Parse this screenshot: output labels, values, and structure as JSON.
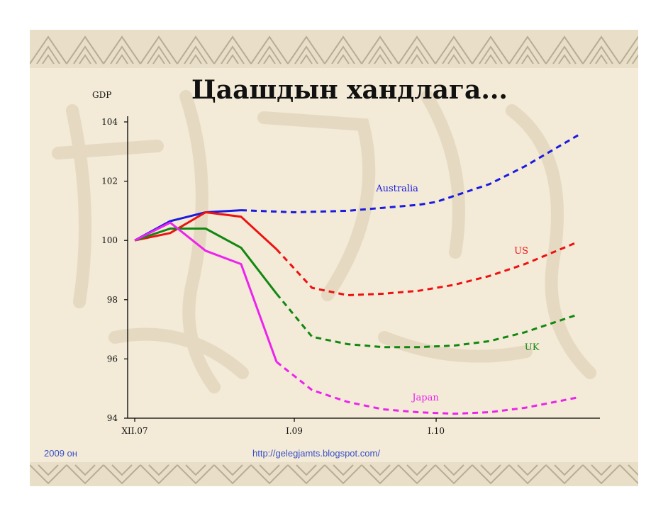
{
  "slide": {
    "title": "Цаашдын хандлага...",
    "footer_left": "2009 он",
    "footer_center": "http://gelegjamts.blogspot.com/"
  },
  "colors": {
    "background": "#f3ead7",
    "ornament": "#c9bfa8",
    "footer_text": "#3850c8"
  },
  "chart_data": {
    "type": "line",
    "ylabel": "GDP",
    "xlabel": "",
    "ylim": [
      94,
      104
    ],
    "yticks": [
      104,
      102,
      100,
      98,
      96,
      94
    ],
    "xlim": [
      0,
      13
    ],
    "x_tick_labels": [
      {
        "x": 0,
        "label": "XII.07"
      },
      {
        "x": 4.5,
        "label": "I.09"
      },
      {
        "x": 8.5,
        "label": "I.10"
      }
    ],
    "grid": false,
    "series": [
      {
        "name": "Australia",
        "color": "#1a1ae0",
        "actual": [
          [
            0,
            100
          ],
          [
            1,
            100.65
          ],
          [
            2,
            100.95
          ],
          [
            3,
            101.02
          ]
        ],
        "forecast": [
          [
            3,
            101.02
          ],
          [
            4.5,
            100.95
          ],
          [
            6,
            101.0
          ],
          [
            7,
            101.1
          ],
          [
            8,
            101.2
          ],
          [
            8.5,
            101.3
          ],
          [
            10,
            101.9
          ],
          [
            11,
            102.5
          ],
          [
            12.5,
            103.55
          ]
        ]
      },
      {
        "name": "US",
        "color": "#ee1111",
        "actual": [
          [
            0,
            100
          ],
          [
            1,
            100.25
          ],
          [
            2,
            100.95
          ],
          [
            3,
            100.8
          ],
          [
            4,
            99.7
          ]
        ],
        "forecast": [
          [
            4,
            99.7
          ],
          [
            5,
            98.4
          ],
          [
            6,
            98.15
          ],
          [
            7,
            98.2
          ],
          [
            8,
            98.3
          ],
          [
            9,
            98.5
          ],
          [
            10,
            98.8
          ],
          [
            11,
            99.2
          ],
          [
            12.5,
            99.95
          ]
        ]
      },
      {
        "name": "UK",
        "color": "#118811",
        "actual": [
          [
            0,
            100
          ],
          [
            1,
            100.4
          ],
          [
            2,
            100.4
          ],
          [
            3,
            99.75
          ],
          [
            4,
            98.2
          ]
        ],
        "forecast": [
          [
            4,
            98.2
          ],
          [
            5,
            96.75
          ],
          [
            6,
            96.5
          ],
          [
            7,
            96.4
          ],
          [
            8,
            96.4
          ],
          [
            9,
            96.45
          ],
          [
            10,
            96.6
          ],
          [
            11,
            96.9
          ],
          [
            12.5,
            97.5
          ]
        ]
      },
      {
        "name": "Japan",
        "color": "#ee22ee",
        "actual": [
          [
            0,
            100
          ],
          [
            1,
            100.6
          ],
          [
            2,
            99.65
          ],
          [
            3,
            99.2
          ],
          [
            4,
            95.9
          ]
        ],
        "forecast": [
          [
            4,
            95.9
          ],
          [
            5,
            94.95
          ],
          [
            6,
            94.55
          ],
          [
            7,
            94.3
          ],
          [
            8,
            94.2
          ],
          [
            9,
            94.15
          ],
          [
            10,
            94.2
          ],
          [
            11,
            94.35
          ],
          [
            12.5,
            94.7
          ]
        ]
      }
    ],
    "annotations": [
      {
        "series": "Australia",
        "text": "Australia",
        "x": 7.4,
        "y": 101.65
      },
      {
        "series": "US",
        "text": "US",
        "x": 10.9,
        "y": 99.55
      },
      {
        "series": "UK",
        "text": "UK",
        "x": 11.2,
        "y": 96.3
      },
      {
        "series": "Japan",
        "text": "Japan",
        "x": 8.2,
        "y": 94.6
      }
    ]
  }
}
